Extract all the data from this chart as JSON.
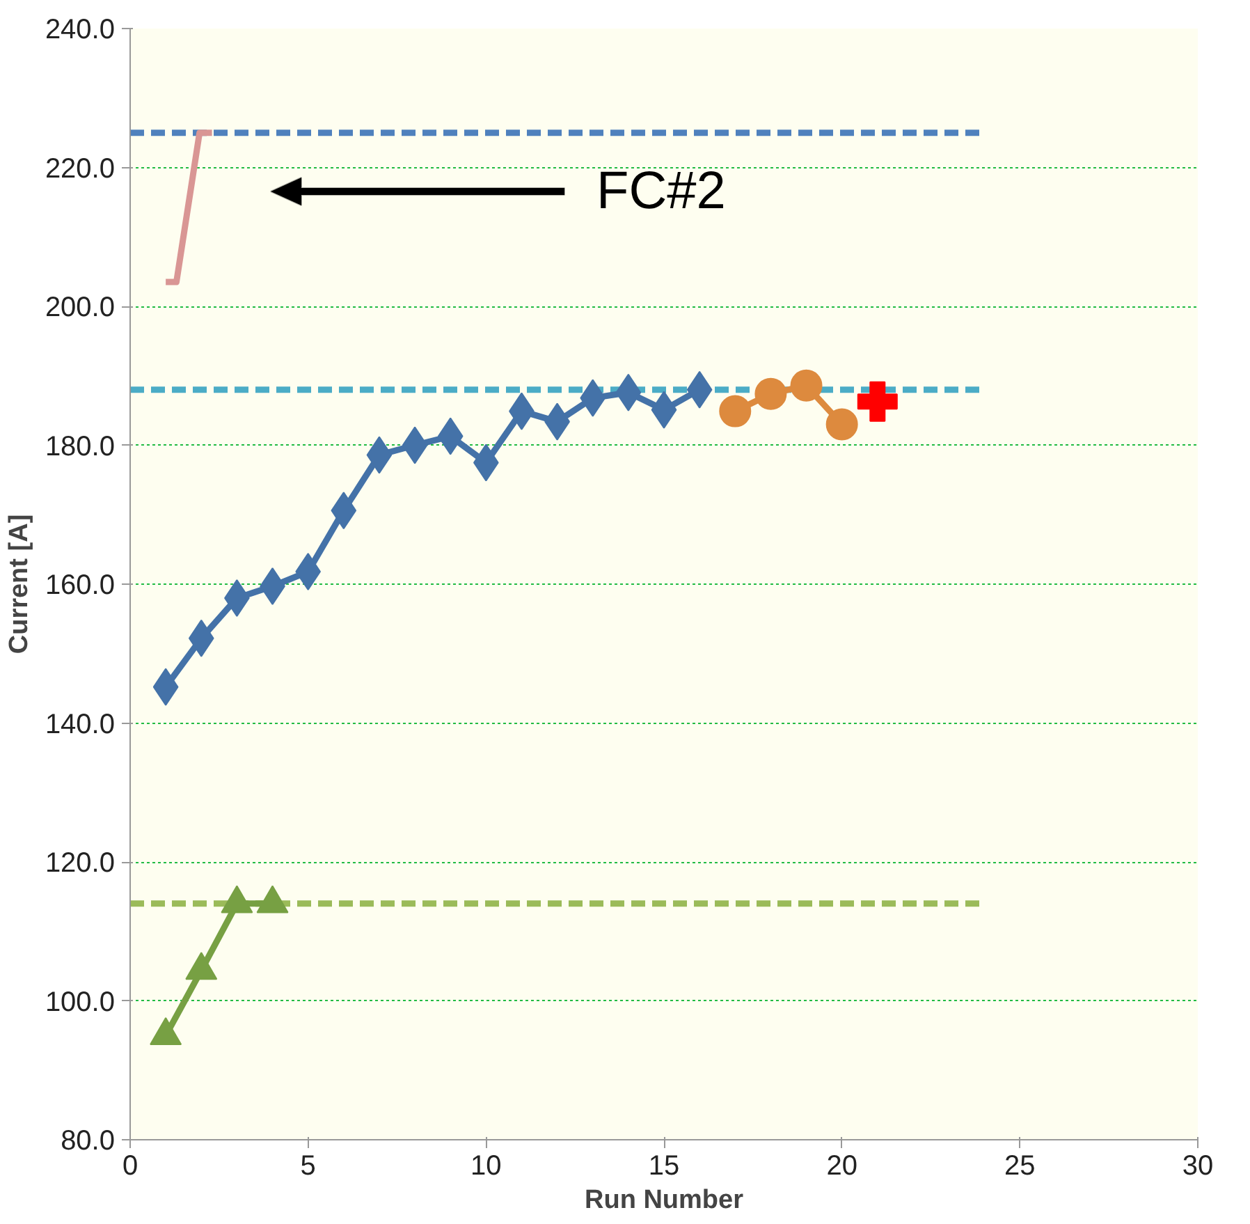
{
  "chart_data": {
    "type": "line",
    "xlabel": "Run Number",
    "ylabel": "Current [A]",
    "xlim": [
      0,
      30
    ],
    "xticks": [
      0,
      5,
      10,
      15,
      20,
      25,
      30
    ],
    "ylim": [
      80,
      240
    ],
    "yticks": [
      {
        "value": 80,
        "label": "80.0"
      },
      {
        "value": 100,
        "label": "100.0"
      },
      {
        "value": 120,
        "label": "120.0"
      },
      {
        "value": 140,
        "label": "140.0"
      },
      {
        "value": 160,
        "label": "160.0"
      },
      {
        "value": 180,
        "label": "180.0"
      },
      {
        "value": 200,
        "label": "200.0"
      },
      {
        "value": 220,
        "label": "220.0"
      },
      {
        "value": 240,
        "label": "240.0"
      }
    ],
    "grid": "y",
    "series": [
      {
        "color": "#4f81bd",
        "x": [
          0,
          24
        ],
        "values": [
          225,
          225
        ],
        "marker": "none",
        "line_style": "dashed"
      },
      {
        "color": "#4bacc6",
        "x": [
          0,
          24
        ],
        "values": [
          188,
          188
        ],
        "marker": "none",
        "line_style": "dashed"
      },
      {
        "color": "#9bbb59",
        "x": [
          0,
          24
        ],
        "values": [
          114,
          114
        ],
        "marker": "none",
        "line_style": "dashed"
      },
      {
        "color": "#d99694",
        "x": [
          1.0,
          1.3,
          1.95,
          2.3
        ],
        "values": [
          203.5,
          203.5,
          225,
          225
        ],
        "marker": "none",
        "line_style": "solid"
      },
      {
        "color": "#4472a8",
        "x": [
          1,
          2,
          3,
          4,
          5,
          6,
          7,
          8,
          9,
          10,
          11,
          12,
          13,
          14,
          15,
          16
        ],
        "values": [
          145.2,
          152.2,
          158.0,
          159.7,
          161.8,
          170.6,
          178.6,
          180.0,
          181.3,
          177.5,
          184.9,
          183.4,
          186.8,
          187.6,
          185.1,
          188.0
        ],
        "marker": "diamond",
        "line_style": "solid"
      },
      {
        "color": "#dd8a3e",
        "x": [
          17,
          18,
          19,
          20
        ],
        "values": [
          184.9,
          187.4,
          188.6,
          183.0
        ],
        "marker": "circle",
        "line_style": "solid"
      },
      {
        "type": "scatter",
        "color": "#ff0000",
        "x": [
          21
        ],
        "values": [
          186.3
        ],
        "marker": "cross"
      },
      {
        "color": "#77a043",
        "x": [
          1,
          2,
          3,
          4
        ],
        "values": [
          95.0,
          104.4,
          114.0,
          114.0
        ],
        "marker": "triangle",
        "line_style": "solid"
      }
    ],
    "annotations": [
      "FC#2"
    ]
  }
}
